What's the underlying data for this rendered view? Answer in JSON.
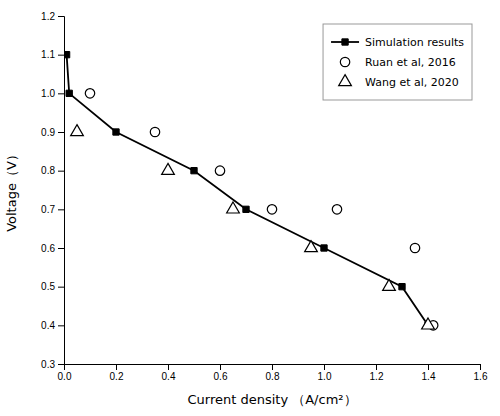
{
  "chart_data": {
    "type": "line",
    "x_label": "Current density （A/cm²）",
    "y_label": "Voltage（V）",
    "series": [
      {
        "name": "Simulation results",
        "type": "line",
        "color": "black",
        "marker": "filled-square",
        "line_style": "solid",
        "x": [
          0.01,
          0.02,
          0.2,
          0.5,
          0.7,
          1.0,
          1.3,
          1.4
        ],
        "values": [
          1.1,
          1.0,
          0.9,
          0.8,
          0.7,
          0.6,
          0.5,
          0.4
        ]
      },
      {
        "name": "Ruan et al, 2016",
        "type": "scatter",
        "color": "black",
        "marker": "open-circle",
        "x": [
          0.1,
          0.35,
          0.6,
          0.8,
          1.05,
          1.35,
          1.42
        ],
        "values": [
          1.0,
          0.9,
          0.8,
          0.7,
          0.7,
          0.6,
          0.4
        ]
      },
      {
        "name": "Wang et al, 2020",
        "type": "scatter",
        "color": "black",
        "marker": "open-triangle",
        "x": [
          0.05,
          0.4,
          0.65,
          0.95,
          1.25,
          1.4
        ],
        "values": [
          0.9,
          0.8,
          0.7,
          0.6,
          0.5,
          0.4
        ]
      }
    ],
    "xlim": [
      0,
      1.6
    ],
    "ylim": [
      0.3,
      1.2
    ],
    "xticks": [
      {
        "value": 0.0,
        "label": "0.0"
      },
      0.2,
      0.4,
      0.6,
      0.8,
      {
        "value": 1.0,
        "label": "1.0"
      },
      1.2,
      1.4,
      1.6
    ],
    "yticks": [
      0.3,
      0.4,
      0.5,
      0.6,
      0.7,
      0.8,
      0.9,
      {
        "value": 1.0,
        "label": "1.0"
      },
      1.1,
      1.2
    ],
    "legend": "upper-right",
    "grid": false
  }
}
